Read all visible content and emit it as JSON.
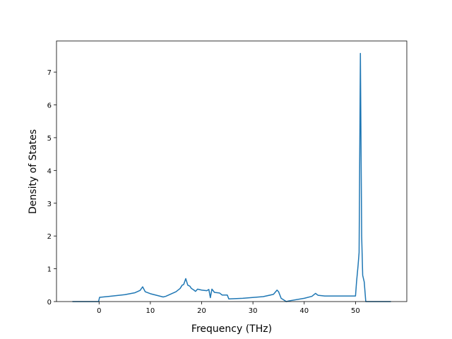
{
  "chart_data": {
    "type": "line",
    "x_label": "Frequency (THz)",
    "y_label": "Density of States",
    "x": [
      -5.2,
      -0.1,
      0.1,
      2,
      5,
      7,
      8,
      8.5,
      9,
      10,
      12.5,
      13,
      15,
      15.8,
      16.2,
      16.5,
      16.9,
      17.3,
      17.7,
      18,
      18.5,
      18.8,
      19.2,
      20,
      21,
      21.4,
      21.7,
      22,
      22.5,
      23.5,
      24,
      25,
      25.3,
      28,
      32,
      34,
      34.7,
      35,
      35.5,
      36,
      36.5,
      37,
      40,
      41.5,
      42.2,
      42.7,
      44,
      50,
      50.2,
      50.5,
      50.7,
      50.95,
      51.2,
      51.4,
      51.7,
      52,
      56.9
    ],
    "series": [
      {
        "color": "#1f77b4",
        "values": [
          0,
          0,
          0.13,
          0.16,
          0.21,
          0.27,
          0.34,
          0.45,
          0.3,
          0.24,
          0.14,
          0.16,
          0.3,
          0.4,
          0.5,
          0.52,
          0.7,
          0.5,
          0.47,
          0.4,
          0.35,
          0.31,
          0.38,
          0.35,
          0.33,
          0.37,
          0.12,
          0.38,
          0.28,
          0.26,
          0.2,
          0.2,
          0.08,
          0.1,
          0.15,
          0.22,
          0.35,
          0.3,
          0.1,
          0.05,
          0.0,
          0.02,
          0.1,
          0.16,
          0.25,
          0.19,
          0.17,
          0.17,
          0.6,
          1.1,
          1.5,
          7.57,
          2.0,
          0.8,
          0.6,
          0.0,
          0
        ]
      }
    ],
    "xlim": [
      -8.3,
      60.0
    ],
    "ylim": [
      0,
      7.95
    ],
    "xticks": [
      0,
      10,
      20,
      30,
      40,
      50
    ],
    "yticks": [
      0,
      1,
      2,
      3,
      4,
      5,
      6,
      7
    ]
  }
}
